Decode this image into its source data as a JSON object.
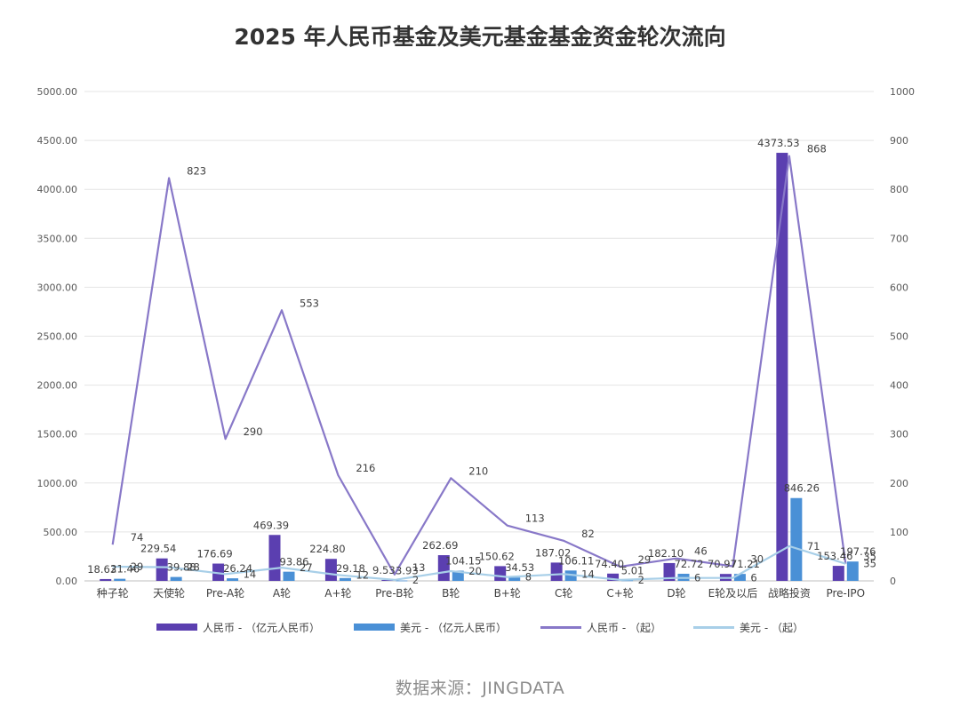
{
  "title": "2025 年人民币基金及美元基金基金资金轮次流向",
  "source": "数据来源：JINGDATA",
  "chart_data": {
    "type": "bar",
    "categories": [
      "种子轮",
      "天使轮",
      "Pre-A轮",
      "A轮",
      "A+轮",
      "Pre-B轮",
      "B轮",
      "B+轮",
      "C轮",
      "C+轮",
      "D轮",
      "E轮及以后",
      "战略投资",
      "Pre-IPO"
    ],
    "series": [
      {
        "name": "人民币 - （亿元人民币）",
        "type": "bar",
        "axis": "left",
        "color": "#5b3fb0",
        "values": [
          18.63,
          229.54,
          176.69,
          469.39,
          224.8,
          9.53,
          262.69,
          150.62,
          187.02,
          74.4,
          182.1,
          70.97,
          4373.53,
          153.46
        ],
        "labels": [
          "18.63",
          "229.54",
          "176.69",
          "469.39",
          "224.80",
          "9.53",
          "262.69",
          "150.62",
          "187.02",
          "74.40",
          "182.10",
          "70.97",
          "4373.53",
          "153.46"
        ]
      },
      {
        "name": "美元 - （亿元人民币）",
        "type": "bar",
        "axis": "left",
        "color": "#4a90d6",
        "values": [
          21.46,
          39.88,
          26.24,
          93.86,
          29.18,
          3.93,
          104.15,
          34.53,
          106.11,
          5.01,
          72.72,
          71.21,
          846.26,
          197.76
        ],
        "labels": [
          "21.46",
          "39.88",
          "26.24",
          "93.86",
          "29.18",
          "3.93",
          "104.15",
          "34.53",
          "106.11",
          "5.01",
          "72.72",
          "71.21",
          "846.26",
          "197.76"
        ]
      },
      {
        "name": "人民币 - （起）",
        "type": "line",
        "axis": "right",
        "color": "#8878c8",
        "values": [
          74,
          823,
          290,
          553,
          216,
          13,
          210,
          113,
          82,
          29,
          46,
          30,
          868,
          35
        ],
        "labels": [
          "74",
          "823",
          "290",
          "553",
          "216",
          "13",
          "210",
          "113",
          "82",
          "29",
          "46",
          "30",
          "868",
          "35"
        ]
      },
      {
        "name": "美元 - （起）",
        "type": "line",
        "axis": "right",
        "color": "#a8cfe8",
        "values": [
          29,
          28,
          14,
          27,
          12,
          2,
          20,
          8,
          14,
          2,
          6,
          6,
          71,
          35
        ],
        "labels": [
          "29",
          "28",
          "14",
          "27",
          "12",
          "2",
          "20",
          "8",
          "14",
          "2",
          "6",
          "6",
          "71",
          "35"
        ]
      }
    ],
    "y_left": {
      "min": 0,
      "max": 5000,
      "ticks": [
        "0.00",
        "500.00",
        "1000.00",
        "1500.00",
        "2000.00",
        "2500.00",
        "3000.00",
        "3500.00",
        "4000.00",
        "4500.00",
        "5000.00"
      ]
    },
    "y_right": {
      "min": 0,
      "max": 1000,
      "ticks": [
        "0",
        "100",
        "200",
        "300",
        "400",
        "500",
        "600",
        "700",
        "800",
        "900",
        "1000"
      ]
    },
    "grid": true,
    "legend_position": "bottom"
  }
}
